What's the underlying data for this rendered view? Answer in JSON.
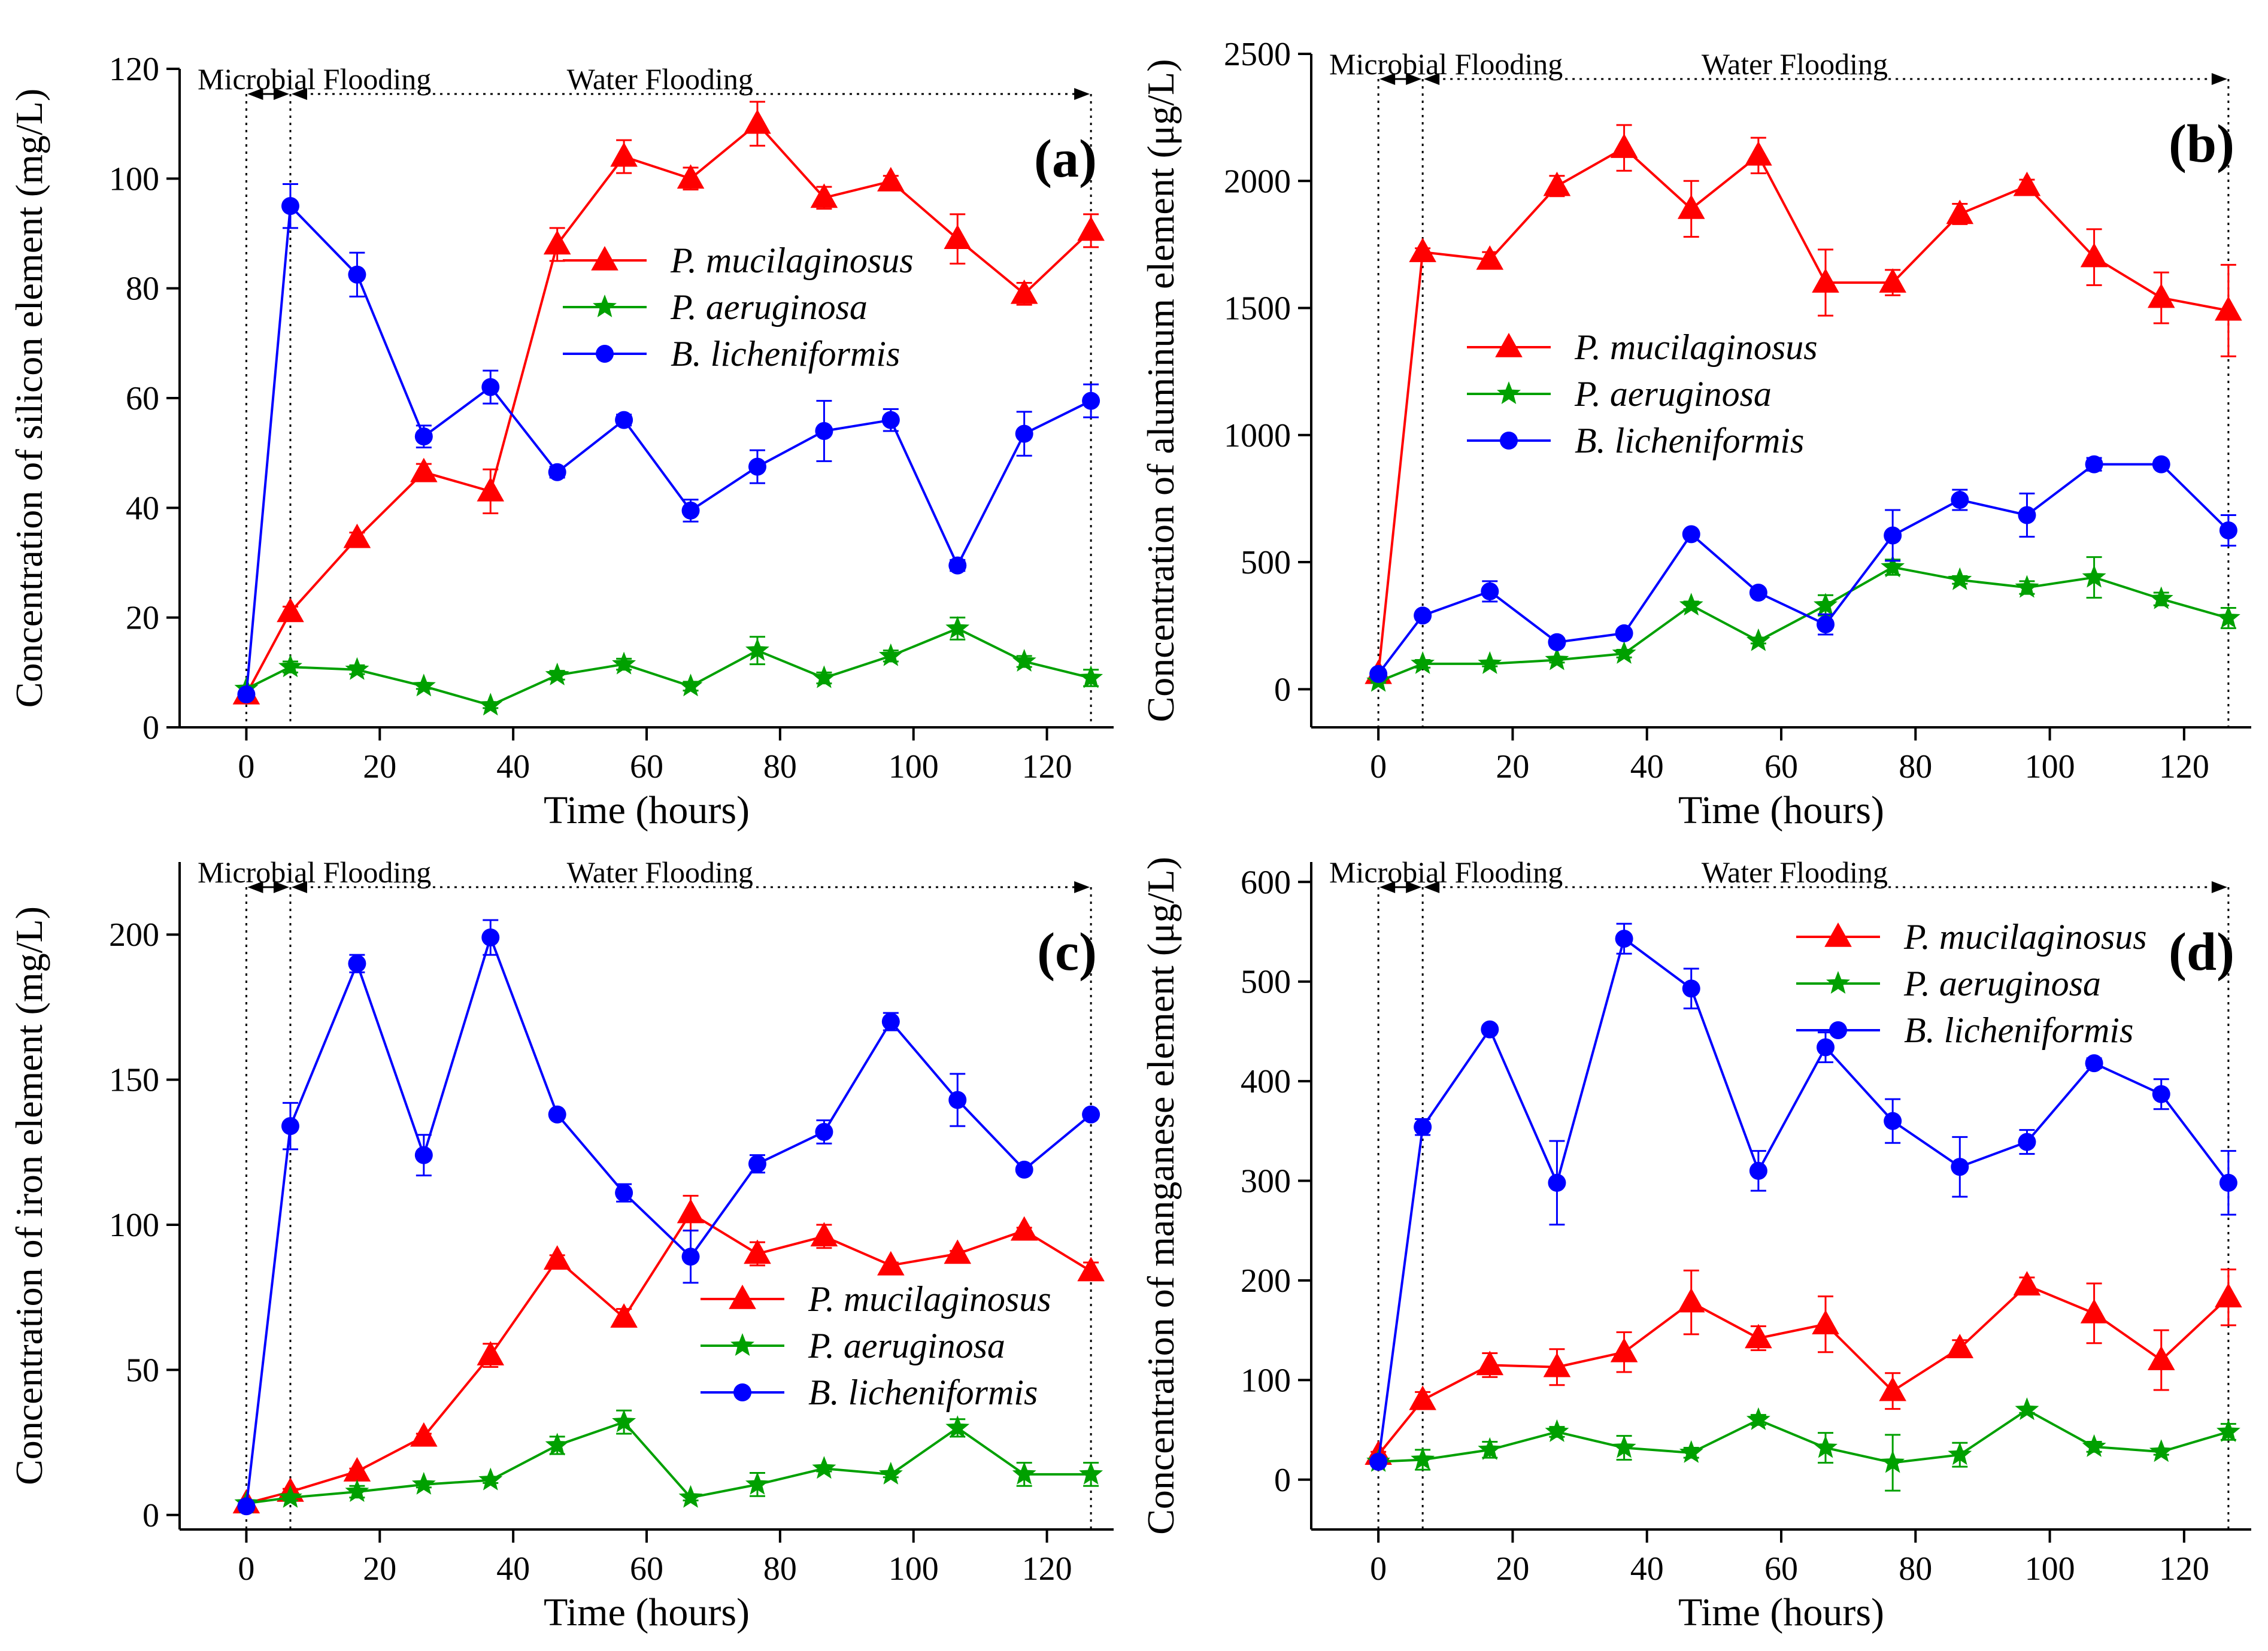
{
  "series_style": {
    "P. mucilaginosus": {
      "color": "#FF0000",
      "marker": "triangle"
    },
    "P. aeruginosa": {
      "color": "#00A000",
      "marker": "star"
    },
    "B. licheniformis": {
      "color": "#0000FF",
      "marker": "circle"
    }
  },
  "chart_data": [
    {
      "type": "line",
      "panel_label": "(a)",
      "xlabel": "Time (hours)",
      "ylabel": "Concentration of silicon element (mg/L)",
      "xlim": [
        -10,
        130
      ],
      "ylim": [
        0,
        120
      ],
      "xticks": [
        0,
        20,
        40,
        60,
        80,
        100,
        120
      ],
      "yticks": [
        0,
        20,
        40,
        60,
        80,
        100,
        120
      ],
      "phase_labels": [
        "Microbial Flooding",
        "Water Flooding"
      ],
      "phase_bounds": [
        0,
        6.6,
        126.6
      ],
      "legend_position": "center-right",
      "x": [
        0,
        6.6,
        16.6,
        26.6,
        36.6,
        46.6,
        56.6,
        66.6,
        76.6,
        86.6,
        96.6,
        106.6,
        116.6,
        126.6
      ],
      "series": [
        {
          "name": "P. mucilaginosus",
          "values": [
            6,
            21,
            34.5,
            46.5,
            43,
            88,
            104,
            100,
            110,
            96.5,
            99.5,
            89,
            79,
            90.5
          ],
          "errors": [
            0.5,
            1,
            1,
            1.5,
            4,
            3,
            3,
            2,
            4,
            2,
            1,
            4.5,
            2,
            3
          ]
        },
        {
          "name": "P. aeruginosa",
          "values": [
            7,
            11,
            10.5,
            7.5,
            4,
            9.5,
            11.5,
            7.5,
            14,
            9,
            13,
            18,
            12,
            9
          ],
          "errors": [
            0.5,
            1,
            0.8,
            0.5,
            0.5,
            0.8,
            1,
            0.8,
            2.5,
            1,
            1,
            2,
            1,
            1.5
          ]
        },
        {
          "name": "B. licheniformis",
          "values": [
            6,
            95,
            82.5,
            53,
            62,
            46.5,
            56,
            39.5,
            47.5,
            54,
            56,
            29.5,
            53.5,
            59.5
          ],
          "errors": [
            0.5,
            4,
            4,
            2,
            3,
            1,
            1,
            2,
            3,
            5.5,
            2,
            1,
            4,
            3
          ]
        }
      ]
    },
    {
      "type": "line",
      "panel_label": "(b)",
      "xlabel": "Time (hours)",
      "ylabel": "Concentration of aluminum element (μg/L)",
      "xlim": [
        -10,
        130
      ],
      "ylim": [
        -150,
        2500
      ],
      "xticks": [
        0,
        20,
        40,
        60,
        80,
        100,
        120
      ],
      "yticks": [
        0,
        500,
        1000,
        1500,
        2000,
        2500
      ],
      "phase_labels": [
        "Microbial Flooding",
        "Water Flooding"
      ],
      "phase_bounds": [
        0,
        6.6,
        126.6
      ],
      "legend_position": "center-left",
      "x": [
        0,
        6.6,
        16.6,
        26.6,
        36.6,
        46.6,
        56.6,
        66.6,
        76.6,
        86.6,
        96.6,
        106.6,
        116.6,
        126.6
      ],
      "series": [
        {
          "name": "P. mucilaginosus",
          "values": [
            60,
            1720,
            1690,
            1980,
            2130,
            1890,
            2100,
            1600,
            1600,
            1870,
            1980,
            1700,
            1540,
            1490
          ],
          "errors": [
            10,
            15,
            30,
            40,
            90,
            110,
            70,
            130,
            50,
            40,
            25,
            110,
            100,
            180
          ]
        },
        {
          "name": "P. aeruginosa",
          "values": [
            30,
            100,
            100,
            115,
            140,
            330,
            190,
            330,
            480,
            430,
            400,
            440,
            355,
            280
          ],
          "errors": [
            5,
            15,
            10,
            10,
            15,
            15,
            10,
            40,
            30,
            15,
            25,
            80,
            25,
            40
          ]
        },
        {
          "name": "B. licheniformis",
          "values": [
            60,
            290,
            385,
            185,
            220,
            610,
            380,
            255,
            605,
            745,
            685,
            885,
            885,
            625
          ],
          "errors": [
            10,
            10,
            40,
            15,
            15,
            10,
            15,
            40,
            100,
            40,
            85,
            25,
            15,
            60
          ]
        }
      ]
    },
    {
      "type": "line",
      "panel_label": "(c)",
      "xlabel": "Time (hours)",
      "ylabel": "Concentration of iron element (mg/L)",
      "xlim": [
        -10,
        130
      ],
      "ylim": [
        -5,
        225
      ],
      "xticks": [
        0,
        20,
        40,
        60,
        80,
        100,
        120
      ],
      "yticks": [
        0,
        50,
        100,
        150,
        200
      ],
      "phase_labels": [
        "Microbial Flooding",
        "Water Flooding"
      ],
      "phase_bounds": [
        0,
        6.6,
        126.6
      ],
      "legend_position": "bottom-right",
      "x": [
        0,
        6.6,
        16.6,
        26.6,
        36.6,
        46.6,
        56.6,
        66.6,
        76.6,
        86.6,
        96.6,
        106.6,
        116.6,
        126.6
      ],
      "series": [
        {
          "name": "P. mucilaginosus",
          "values": [
            4,
            8,
            15,
            27,
            55,
            88,
            68,
            104,
            90,
            96,
            86,
            90,
            98,
            84
          ],
          "errors": [
            0.5,
            1,
            1,
            1,
            4,
            1.5,
            3,
            6,
            4,
            4,
            1,
            1,
            1,
            3
          ]
        },
        {
          "name": "P. aeruginosa",
          "values": [
            4,
            6,
            8,
            10.5,
            12,
            24,
            32,
            6,
            10.5,
            16,
            14,
            30,
            14,
            14
          ],
          "errors": [
            0.5,
            1,
            2,
            1,
            1,
            3,
            4,
            1,
            4,
            1,
            1,
            3,
            4,
            4
          ]
        },
        {
          "name": "B. licheniformis",
          "values": [
            3,
            134,
            190,
            124,
            199,
            138,
            111,
            89,
            121,
            132,
            170,
            143,
            119,
            138
          ],
          "errors": [
            0.5,
            8,
            3,
            7,
            6,
            1,
            3,
            9,
            3,
            4,
            3,
            9,
            1,
            1
          ]
        }
      ]
    },
    {
      "type": "line",
      "panel_label": "(d)",
      "xlabel": "Time (hours)",
      "ylabel": "Concentration of manganese element (μg/L)",
      "xlim": [
        -10,
        130
      ],
      "ylim": [
        -50,
        620
      ],
      "xticks": [
        0,
        20,
        40,
        60,
        80,
        100,
        120
      ],
      "yticks": [
        0,
        100,
        200,
        300,
        400,
        500,
        600
      ],
      "phase_labels": [
        "Microbial Flooding",
        "Water Flooding"
      ],
      "phase_bounds": [
        0,
        6.6,
        126.6
      ],
      "legend_position": "top-right",
      "x": [
        0,
        6.6,
        16.6,
        26.6,
        36.6,
        46.6,
        56.6,
        66.6,
        76.6,
        86.6,
        96.6,
        106.6,
        116.6,
        126.6
      ],
      "series": [
        {
          "name": "P. mucilaginosus",
          "values": [
            25,
            80,
            115,
            113,
            128,
            178,
            142,
            156,
            89,
            132,
            195,
            167,
            120,
            183
          ],
          "errors": [
            3,
            8,
            12,
            18,
            20,
            32,
            12,
            28,
            18,
            8,
            8,
            30,
            30,
            28
          ]
        },
        {
          "name": "P. aeruginosa",
          "values": [
            18,
            20,
            30,
            48,
            32,
            27,
            60,
            32,
            17,
            25,
            70,
            33,
            28,
            48
          ],
          "errors": [
            3,
            10,
            8,
            5,
            12,
            5,
            5,
            15,
            28,
            12,
            3,
            5,
            3,
            8
          ]
        },
        {
          "name": "B. licheniformis",
          "values": [
            18,
            354,
            452,
            298,
            543,
            493,
            310,
            434,
            360,
            314,
            339,
            418,
            387,
            298
          ],
          "errors": [
            3,
            8,
            3,
            42,
            15,
            20,
            20,
            15,
            22,
            30,
            12,
            5,
            15,
            32
          ]
        }
      ]
    }
  ]
}
